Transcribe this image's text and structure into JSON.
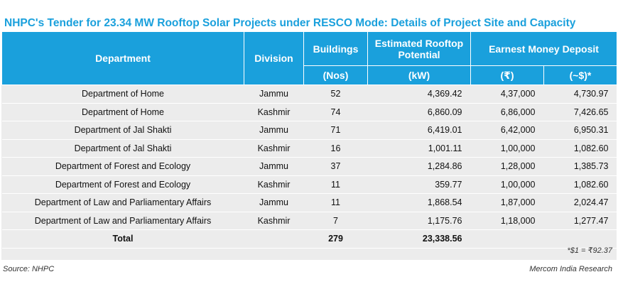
{
  "title": "NHPC's Tender for 23.34 MW Rooftop Solar Projects under RESCO Mode: Details of Project Site and Capacity",
  "headers": {
    "department": "Department",
    "division": "Division",
    "buildings": "Buildings",
    "buildings_unit": "(Nos)",
    "potential": "Estimated Rooftop Potential",
    "potential_unit": "(kW)",
    "emd": "Earnest Money Deposit",
    "emd_inr": "(₹)",
    "emd_usd": "(~$)*"
  },
  "rows": [
    {
      "department": "Department of Home",
      "division": "Jammu",
      "buildings": "52",
      "potential": "4,369.42",
      "emd_inr": "4,37,000",
      "emd_usd": "4,730.97"
    },
    {
      "department": "Department of Home",
      "division": "Kashmir",
      "buildings": "74",
      "potential": "6,860.09",
      "emd_inr": "6,86,000",
      "emd_usd": "7,426.65"
    },
    {
      "department": "Department of Jal Shakti",
      "division": "Jammu",
      "buildings": "71",
      "potential": "6,419.01",
      "emd_inr": "6,42,000",
      "emd_usd": "6,950.31"
    },
    {
      "department": "Department of Jal Shakti",
      "division": "Kashmir",
      "buildings": "16",
      "potential": "1,001.11",
      "emd_inr": "1,00,000",
      "emd_usd": "1,082.60"
    },
    {
      "department": "Department of Forest and Ecology",
      "division": "Jammu",
      "buildings": "37",
      "potential": "1,284.86",
      "emd_inr": "1,28,000",
      "emd_usd": "1,385.73"
    },
    {
      "department": "Department of Forest and Ecology",
      "division": "Kashmir",
      "buildings": "11",
      "potential": "359.77",
      "emd_inr": "1,00,000",
      "emd_usd": "1,082.60"
    },
    {
      "department": "Department of Law and Parliamentary Affairs",
      "division": "Jammu",
      "buildings": "11",
      "potential": "1,868.54",
      "emd_inr": "1,87,000",
      "emd_usd": "2,024.47"
    },
    {
      "department": "Department of Law and Parliamentary Affairs",
      "division": "Kashmir",
      "buildings": "7",
      "potential": "1,175.76",
      "emd_inr": "1,18,000",
      "emd_usd": "1,277.47"
    }
  ],
  "total": {
    "label": "Total",
    "buildings": "279",
    "potential": "23,338.56"
  },
  "note": "*$1 = ₹92.37",
  "source": "Source: NHPC",
  "credit": "Mercom India Research"
}
